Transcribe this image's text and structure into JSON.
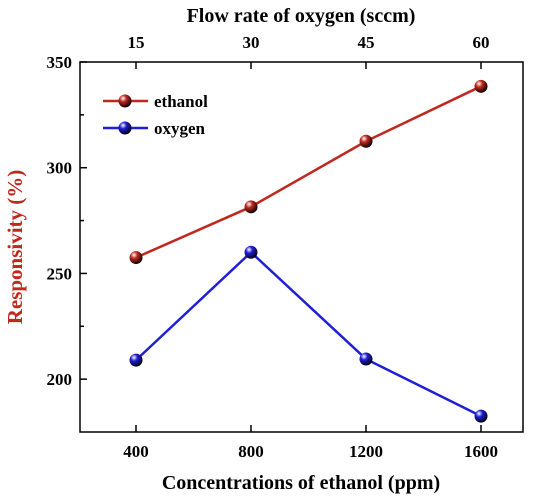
{
  "chart_data": {
    "type": "line",
    "xlabel": "Concentrations of  ethanol (ppm)",
    "x2label": "Flow rate of  oxygen (sccm)",
    "ylabel": "Responsivity (%)",
    "x_categories": [
      "400",
      "800",
      "1200",
      "1600"
    ],
    "x2_categories": [
      "15",
      "30",
      "45",
      "60"
    ],
    "yticks": [
      "200",
      "250",
      "300",
      "350"
    ],
    "ylim": [
      175,
      350
    ],
    "grid": false,
    "legend_position": "top-left",
    "series": [
      {
        "name": "ethanol",
        "color": "#c0281f",
        "values": [
          257.5,
          281.5,
          312.5,
          338.5
        ]
      },
      {
        "name": "oxygen",
        "color": "#1f1fd6",
        "values": [
          209,
          260,
          209.5,
          182.5
        ]
      }
    ],
    "ylabel_color": "#c0281f"
  }
}
